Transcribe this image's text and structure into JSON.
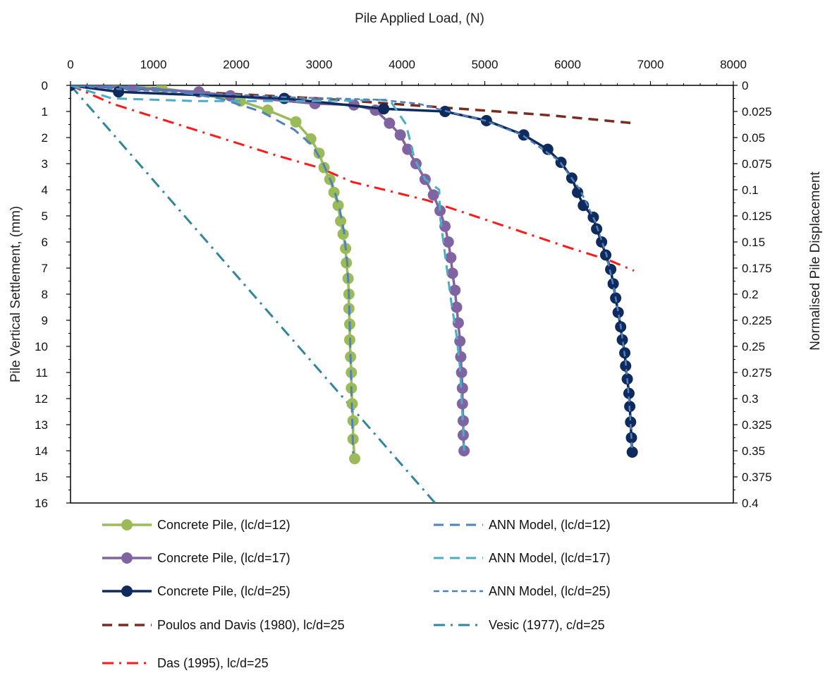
{
  "chart_data": {
    "type": "line",
    "xlabel": "Pile Applied Load, (N)",
    "ylabel": "Pile Vertical Settlement, (mm)",
    "y2label": "Normalised Pile Displacement",
    "x_axis_position": "top",
    "y_inverted": true,
    "xlim": [
      0,
      8000
    ],
    "ylim": [
      0,
      16
    ],
    "y2lim": [
      0,
      0.4
    ],
    "x_ticks": [
      "0",
      "1000",
      "2000",
      "3000",
      "4000",
      "5000",
      "6000",
      "7000",
      "8000"
    ],
    "y_ticks": [
      "0",
      "1",
      "2",
      "3",
      "4",
      "5",
      "6",
      "7",
      "8",
      "9",
      "10",
      "11",
      "12",
      "13",
      "14",
      "15",
      "16"
    ],
    "y2_ticks": [
      "0",
      "0.025",
      "0.05",
      "0.075",
      "0.1",
      "0.125",
      "0.15",
      "0.175",
      "0.2",
      "0.225",
      "0.25",
      "0.275",
      "0.3",
      "0.325",
      "0.35",
      "0.375",
      "0.4"
    ],
    "grid": false,
    "legend_position": "bottom",
    "series": [
      {
        "name": "Concrete Pile, (lc/d=12)",
        "color": "#9BBB59",
        "style": "solid-markers",
        "points": [
          [
            0,
            0
          ],
          [
            1100,
            0.1
          ],
          [
            2050,
            0.6
          ],
          [
            2380,
            0.95
          ],
          [
            2720,
            1.4
          ],
          [
            2900,
            2.05
          ],
          [
            3000,
            2.6
          ],
          [
            3060,
            3.15
          ],
          [
            3130,
            3.6
          ],
          [
            3180,
            4.1
          ],
          [
            3230,
            4.6
          ],
          [
            3260,
            5.2
          ],
          [
            3290,
            5.7
          ],
          [
            3320,
            6.25
          ],
          [
            3330,
            6.8
          ],
          [
            3350,
            7.4
          ],
          [
            3360,
            8.0
          ],
          [
            3360,
            8.55
          ],
          [
            3370,
            9.15
          ],
          [
            3370,
            9.75
          ],
          [
            3380,
            10.4
          ],
          [
            3390,
            11.0
          ],
          [
            3390,
            11.6
          ],
          [
            3400,
            12.2
          ],
          [
            3410,
            12.85
          ],
          [
            3410,
            13.55
          ],
          [
            3430,
            14.3
          ]
        ]
      },
      {
        "name": "Concrete Pile, (lc/d=17)",
        "color": "#8064A2",
        "style": "solid-markers",
        "points": [
          [
            0,
            0
          ],
          [
            750,
            0.1
          ],
          [
            1550,
            0.25
          ],
          [
            1930,
            0.4
          ],
          [
            2950,
            0.7
          ],
          [
            3420,
            0.75
          ],
          [
            3680,
            0.95
          ],
          [
            3850,
            1.45
          ],
          [
            3980,
            1.9
          ],
          [
            4070,
            2.45
          ],
          [
            4170,
            3.0
          ],
          [
            4280,
            3.6
          ],
          [
            4380,
            4.2
          ],
          [
            4460,
            4.8
          ],
          [
            4520,
            5.4
          ],
          [
            4560,
            6.0
          ],
          [
            4590,
            6.6
          ],
          [
            4610,
            7.2
          ],
          [
            4640,
            7.85
          ],
          [
            4660,
            8.5
          ],
          [
            4680,
            9.1
          ],
          [
            4700,
            9.8
          ],
          [
            4710,
            10.4
          ],
          [
            4720,
            11.0
          ],
          [
            4730,
            11.6
          ],
          [
            4730,
            12.2
          ],
          [
            4740,
            12.85
          ],
          [
            4740,
            13.4
          ],
          [
            4750,
            14.0
          ]
        ]
      },
      {
        "name": "Concrete Pile, (lc/d=25)",
        "color": "#0F2A5C",
        "style": "solid-markers",
        "points": [
          [
            0,
            0
          ],
          [
            580,
            0.25
          ],
          [
            2580,
            0.5
          ],
          [
            3780,
            0.9
          ],
          [
            4520,
            1.0
          ],
          [
            5020,
            1.35
          ],
          [
            5470,
            1.9
          ],
          [
            5760,
            2.45
          ],
          [
            5920,
            2.95
          ],
          [
            6050,
            3.55
          ],
          [
            6120,
            4.1
          ],
          [
            6190,
            4.6
          ],
          [
            6310,
            5.05
          ],
          [
            6350,
            5.5
          ],
          [
            6410,
            6.0
          ],
          [
            6460,
            6.5
          ],
          [
            6520,
            7.05
          ],
          [
            6550,
            7.6
          ],
          [
            6580,
            8.15
          ],
          [
            6610,
            8.7
          ],
          [
            6640,
            9.25
          ],
          [
            6660,
            9.75
          ],
          [
            6690,
            10.25
          ],
          [
            6700,
            10.75
          ],
          [
            6720,
            11.25
          ],
          [
            6740,
            11.8
          ],
          [
            6750,
            12.3
          ],
          [
            6760,
            12.9
          ],
          [
            6770,
            13.5
          ],
          [
            6780,
            14.05
          ]
        ]
      },
      {
        "name": "ANN Model, (lc/d=12)",
        "color": "#4F81BD",
        "style": "dash",
        "points": [
          [
            0,
            0
          ],
          [
            1000,
            0.1
          ],
          [
            1800,
            0.5
          ],
          [
            2300,
            1.0
          ],
          [
            2700,
            1.7
          ],
          [
            2920,
            2.3
          ],
          [
            3050,
            3.0
          ],
          [
            3160,
            3.8
          ],
          [
            3240,
            4.6
          ],
          [
            3300,
            5.6
          ],
          [
            3340,
            6.8
          ],
          [
            3360,
            8.0
          ],
          [
            3370,
            9.2
          ],
          [
            3380,
            10.4
          ],
          [
            3390,
            11.6
          ],
          [
            3400,
            12.8
          ],
          [
            3410,
            14.1
          ]
        ]
      },
      {
        "name": "ANN Model, (lc/d=17)",
        "color": "#4BACC6",
        "style": "dash",
        "points": [
          [
            0,
            0
          ],
          [
            500,
            0.5
          ],
          [
            1500,
            0.6
          ],
          [
            3000,
            0.6
          ],
          [
            3850,
            0.55
          ],
          [
            4050,
            1.5
          ],
          [
            4150,
            2.8
          ],
          [
            4280,
            3.6
          ],
          [
            4450,
            4.0
          ],
          [
            4460,
            5.0
          ],
          [
            4500,
            6.0
          ],
          [
            4550,
            7.2
          ],
          [
            4600,
            8.4
          ],
          [
            4660,
            9.6
          ],
          [
            4700,
            10.8
          ],
          [
            4720,
            12.0
          ],
          [
            4740,
            13.2
          ],
          [
            4750,
            14.0
          ]
        ]
      },
      {
        "name": "ANN Model, (lc/d=25)",
        "color": "#4F81BD",
        "style": "shortdash",
        "points": [
          [
            0,
            0
          ],
          [
            600,
            0.15
          ],
          [
            2600,
            0.45
          ],
          [
            3700,
            0.55
          ],
          [
            4200,
            0.7
          ],
          [
            4550,
            1.0
          ],
          [
            5000,
            1.35
          ],
          [
            5450,
            1.9
          ],
          [
            5900,
            2.9
          ],
          [
            6150,
            4.0
          ],
          [
            6330,
            5.2
          ],
          [
            6470,
            6.5
          ],
          [
            6560,
            7.8
          ],
          [
            6640,
            9.2
          ],
          [
            6700,
            10.6
          ],
          [
            6740,
            12.0
          ],
          [
            6780,
            14.0
          ]
        ]
      },
      {
        "name": "Poulos and Davis (1980), lc/d=25",
        "color": "#7B2C20",
        "style": "longdash",
        "points": [
          [
            0,
            0
          ],
          [
            1500,
            0.25
          ],
          [
            3000,
            0.5
          ],
          [
            4500,
            0.85
          ],
          [
            5800,
            1.15
          ],
          [
            6800,
            1.45
          ]
        ]
      },
      {
        "name": "Vesic (1977), c/d=25",
        "color": "#31859C",
        "style": "dashdot",
        "points": [
          [
            0,
            0
          ],
          [
            4400,
            16.0
          ]
        ]
      },
      {
        "name": "Das (1995), lc/d=25",
        "color": "#FF1A1A",
        "style": "dashdot",
        "points": [
          [
            0,
            0
          ],
          [
            500,
            0.7
          ],
          [
            1700,
            1.9
          ],
          [
            2500,
            2.7
          ],
          [
            3000,
            3.15
          ],
          [
            3400,
            3.7
          ],
          [
            4300,
            4.4
          ],
          [
            5200,
            5.35
          ],
          [
            6000,
            6.2
          ],
          [
            6500,
            6.7
          ],
          [
            6800,
            7.1
          ]
        ]
      }
    ]
  },
  "legend": {
    "col1": [
      {
        "label": "Concrete Pile, (lc/d=12)",
        "series": 0
      },
      {
        "label": "Concrete Pile, (lc/d=17)",
        "series": 1
      },
      {
        "label": "Concrete Pile, (lc/d=25)",
        "series": 2
      },
      {
        "label": "Poulos and Davis (1980), lc/d=25",
        "series": 6
      },
      {
        "label": "Das (1995), lc/d=25",
        "series": 8
      }
    ],
    "col2": [
      {
        "label": "ANN Model, (lc/d=12)",
        "series": 3
      },
      {
        "label": "ANN Model, (lc/d=17)",
        "series": 4
      },
      {
        "label": "ANN Model, (lc/d=25)",
        "series": 5
      },
      {
        "label": "Vesic (1977), c/d=25",
        "series": 7
      }
    ]
  }
}
